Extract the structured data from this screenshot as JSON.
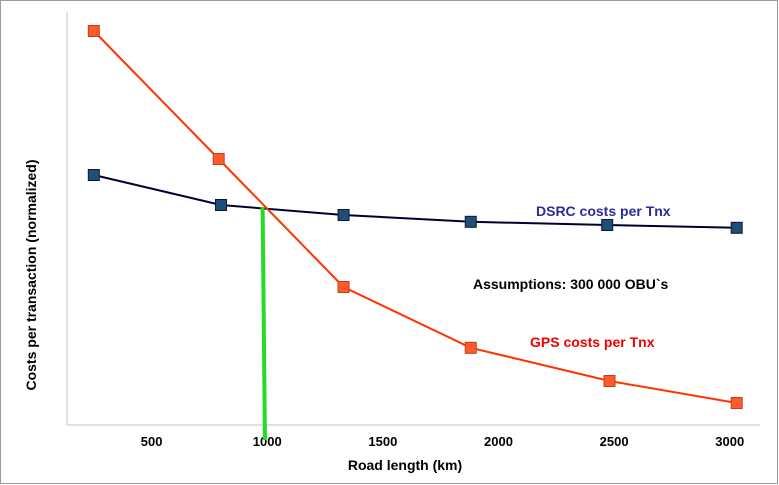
{
  "chart_data": {
    "type": "line",
    "xlabel": "Road length (km)",
    "ylabel": "Costs per transaction (normalized)",
    "x_ticks": [
      500,
      1000,
      1500,
      2000,
      2500,
      3000
    ],
    "xlim": [
      0,
      3200
    ],
    "ylim": [
      0,
      100
    ],
    "grid": false,
    "series": [
      {
        "name": "DSRC costs per Tnx",
        "color": "#1f4e79",
        "line_color": "#000033",
        "x": [
          250,
          800,
          1330,
          1880,
          2470,
          3030
        ],
        "y": [
          60.0,
          52.5,
          50.0,
          48.3,
          47.5,
          46.8
        ]
      },
      {
        "name": "GPS costs per Tnx",
        "color": "#ff5a2a",
        "line_color": "#ff3300",
        "x": [
          250,
          790,
          1330,
          1880,
          2480,
          3030
        ],
        "y": [
          96.0,
          64.0,
          32.0,
          16.8,
          8.5,
          3.0
        ]
      }
    ],
    "annotations": [
      {
        "text": "DSRC costs per Tnx",
        "color": "#2b2b99"
      },
      {
        "text": "Assumptions: 300 000 OBU`s",
        "color": "#000000"
      },
      {
        "text": "GPS costs per Tnx",
        "color": "#ee0000"
      }
    ],
    "reference_line": {
      "color": "#22dd22"
    }
  }
}
